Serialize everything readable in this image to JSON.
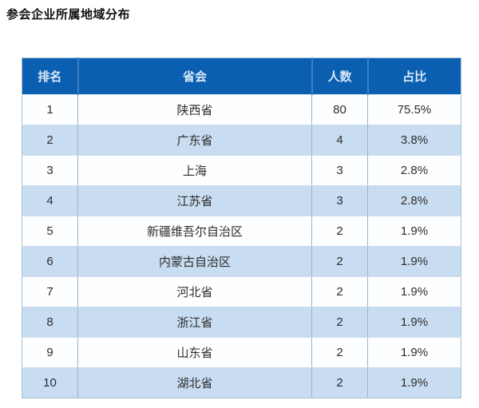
{
  "page": {
    "title": "参会企业所属地域分布"
  },
  "table": {
    "columns": [
      "排名",
      "省会",
      "人数",
      "占比"
    ],
    "rows": [
      {
        "rank": "1",
        "region": "陕西省",
        "count": "80",
        "percent": "75.5%"
      },
      {
        "rank": "2",
        "region": "广东省",
        "count": "4",
        "percent": "3.8%"
      },
      {
        "rank": "3",
        "region": "上海",
        "count": "3",
        "percent": "2.8%"
      },
      {
        "rank": "4",
        "region": "江苏省",
        "count": "3",
        "percent": "2.8%"
      },
      {
        "rank": "5",
        "region": "新疆维吾尔自治区",
        "count": "2",
        "percent": "1.9%"
      },
      {
        "rank": "6",
        "region": "内蒙古自治区",
        "count": "2",
        "percent": "1.9%"
      },
      {
        "rank": "7",
        "region": "河北省",
        "count": "2",
        "percent": "1.9%"
      },
      {
        "rank": "8",
        "region": "浙江省",
        "count": "2",
        "percent": "1.9%"
      },
      {
        "rank": "9",
        "region": "山东省",
        "count": "2",
        "percent": "1.9%"
      },
      {
        "rank": "10",
        "region": "湖北省",
        "count": "2",
        "percent": "1.9%"
      }
    ]
  },
  "chart_data": {
    "type": "table",
    "title": "参会企业所属地域分布",
    "columns": [
      "排名",
      "省会",
      "人数",
      "占比"
    ],
    "rows": [
      [
        "1",
        "陕西省",
        80,
        "75.5%"
      ],
      [
        "2",
        "广东省",
        4,
        "3.8%"
      ],
      [
        "3",
        "上海",
        3,
        "2.8%"
      ],
      [
        "4",
        "江苏省",
        3,
        "2.8%"
      ],
      [
        "5",
        "新疆维吾尔自治区",
        2,
        "1.9%"
      ],
      [
        "6",
        "内蒙古自治区",
        2,
        "1.9%"
      ],
      [
        "7",
        "河北省",
        2,
        "1.9%"
      ],
      [
        "8",
        "浙江省",
        2,
        "1.9%"
      ],
      [
        "9",
        "山东省",
        2,
        "1.9%"
      ],
      [
        "10",
        "湖北省",
        2,
        "1.9%"
      ]
    ]
  },
  "colors": {
    "header_bg": "#0b5fb0",
    "header_text": "#d8e8f8",
    "header_divider": "#3f80c2",
    "row_odd_bg": "#fdfeff",
    "row_even_bg": "#c9ddf2",
    "body_text": "#2d2d2d",
    "cell_divider": "#9db3c8",
    "row_border": "#ccdbeb",
    "table_border": "#a9bfd4"
  }
}
